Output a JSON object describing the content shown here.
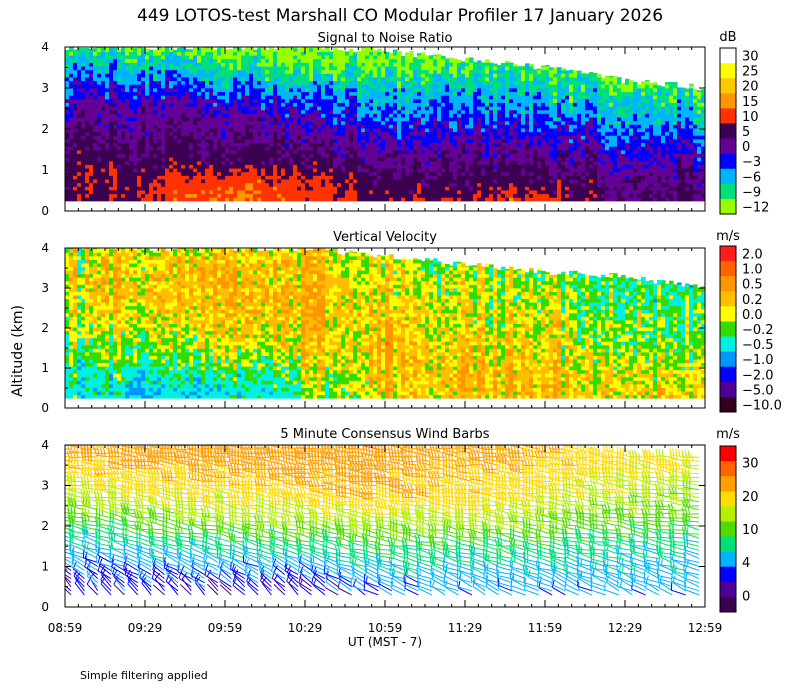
{
  "figure": {
    "title": "449 LOTOS-test Marshall CO Modular Profiler 17 January 2026",
    "ylabel": "Altitude (km)",
    "xlabel": "UT  (MST - 7)",
    "footnote": "Simple filtering applied",
    "time_labels": [
      "08:59",
      "09:29",
      "09:59",
      "10:29",
      "10:59",
      "11:29",
      "11:59",
      "12:29",
      "12:59"
    ]
  },
  "chart_data": [
    {
      "type": "heatmap",
      "title": "Signal to Noise Ratio",
      "xlabel": "UT  (MST - 7)",
      "ylabel": "Altitude (km)",
      "x_range": [
        "08:59",
        "12:59"
      ],
      "ylim": [
        0,
        4
      ],
      "y_ticks": [
        "0",
        "1",
        "2",
        "3",
        "4"
      ],
      "colorbar": {
        "unit": "dB",
        "labels": [
          "30",
          "25",
          "20",
          "15",
          "10",
          "5",
          "0",
          "−3",
          "−6",
          "−9",
          "−12"
        ],
        "colors": [
          "#ffffff",
          "#ffff00",
          "#ffc800",
          "#ff9600",
          "#ff3200",
          "#3c0050",
          "#640096",
          "#0000ff",
          "#00b4ff",
          "#00e07a",
          "#96ff00"
        ]
      },
      "profile_columns": [
        {
          "t": 0.0,
          "top_km": 4.0,
          "snr_db": [
            5,
            5,
            6,
            5,
            3,
            2,
            0,
            -2,
            -4,
            -7,
            -10
          ]
        },
        {
          "t": 0.12,
          "top_km": 4.0,
          "snr_db": [
            6,
            8,
            6,
            4,
            3,
            1,
            0,
            -2,
            -5,
            -8,
            -11
          ]
        },
        {
          "t": 0.25,
          "top_km": 4.0,
          "snr_db": [
            12,
            14,
            10,
            5,
            3,
            2,
            0,
            -3,
            -6,
            -9,
            -12
          ]
        },
        {
          "t": 0.37,
          "top_km": 4.0,
          "snr_db": [
            10,
            11,
            8,
            4,
            2,
            0,
            -2,
            -4,
            -8,
            -11,
            -12
          ]
        },
        {
          "t": 0.5,
          "top_km": 3.9,
          "snr_db": [
            6,
            5,
            3,
            1,
            -1,
            -3,
            -5,
            -7,
            -9,
            -11,
            -12
          ]
        },
        {
          "t": 0.62,
          "top_km": 3.7,
          "snr_db": [
            10,
            6,
            4,
            2,
            0,
            -2,
            -4,
            -6,
            -8,
            -10,
            -12
          ]
        },
        {
          "t": 0.75,
          "top_km": 3.5,
          "snr_db": [
            11,
            7,
            4,
            1,
            -1,
            -3,
            -5,
            -7,
            -9,
            -11,
            -12
          ]
        },
        {
          "t": 0.87,
          "top_km": 3.2,
          "snr_db": [
            4,
            3,
            2,
            0,
            -2,
            -4,
            -6,
            -8,
            -10,
            -11,
            -12
          ]
        },
        {
          "t": 1.0,
          "top_km": 3.0,
          "snr_db": [
            5,
            3,
            1,
            -1,
            -3,
            -5,
            -7,
            -9,
            -11,
            -12,
            -12
          ]
        }
      ]
    },
    {
      "type": "heatmap",
      "title": "Vertical Velocity",
      "xlabel": "UT  (MST - 7)",
      "ylabel": "Altitude (km)",
      "x_range": [
        "08:59",
        "12:59"
      ],
      "ylim": [
        0,
        4
      ],
      "y_ticks": [
        "0",
        "1",
        "2",
        "3",
        "4"
      ],
      "colorbar": {
        "unit": "m/s",
        "labels": [
          "2.0",
          "1.0",
          "0.5",
          "0.2",
          "0.0",
          "−0.2",
          "−0.5",
          "−1.0",
          "−2.0",
          "−5.0",
          "−10.0"
        ],
        "colors": [
          "#ff1e1e",
          "#ff6400",
          "#ff9600",
          "#ffbe00",
          "#ffff00",
          "#32dc00",
          "#00f0e0",
          "#0096ff",
          "#0000ff",
          "#500096",
          "#32001e"
        ]
      },
      "profile_columns": [
        {
          "t": 0.0,
          "top_km": 4.0,
          "w_ms": [
            -0.6,
            -0.5,
            -0.4,
            -0.3,
            -0.2,
            -0.1,
            0.0,
            0.0,
            0.1,
            0.0,
            -0.1
          ]
        },
        {
          "t": 0.12,
          "top_km": 4.0,
          "w_ms": [
            -0.8,
            -0.7,
            -0.5,
            -0.3,
            -0.1,
            0.0,
            0.1,
            0.2,
            0.1,
            0.1,
            0.0
          ]
        },
        {
          "t": 0.25,
          "top_km": 4.0,
          "w_ms": [
            -0.7,
            -0.6,
            -0.4,
            -0.2,
            0.0,
            0.1,
            0.2,
            0.2,
            0.3,
            0.2,
            0.1
          ]
        },
        {
          "t": 0.37,
          "top_km": 4.0,
          "w_ms": [
            -0.4,
            -0.3,
            -0.2,
            0.0,
            0.1,
            0.2,
            0.3,
            0.3,
            0.2,
            0.2,
            0.1
          ]
        },
        {
          "t": 0.5,
          "top_km": 3.8,
          "w_ms": [
            0.1,
            0.2,
            0.2,
            0.3,
            0.3,
            0.2,
            0.2,
            0.1,
            0.1,
            0.0,
            0.0
          ]
        },
        {
          "t": 0.62,
          "top_km": 3.6,
          "w_ms": [
            0.2,
            0.3,
            0.3,
            0.2,
            0.2,
            0.1,
            0.1,
            0.0,
            0.0,
            -0.1,
            -0.1
          ]
        },
        {
          "t": 0.75,
          "top_km": 3.4,
          "w_ms": [
            0.1,
            0.2,
            0.2,
            0.1,
            0.0,
            0.0,
            -0.1,
            -0.1,
            -0.2,
            -0.2,
            -0.3
          ]
        },
        {
          "t": 0.87,
          "top_km": 3.3,
          "w_ms": [
            0.0,
            0.1,
            0.0,
            -0.1,
            -0.2,
            -0.2,
            -0.3,
            -0.3,
            -0.4,
            -0.4,
            -0.5
          ]
        },
        {
          "t": 1.0,
          "top_km": 3.0,
          "w_ms": [
            0.2,
            0.1,
            0.0,
            -0.1,
            -0.2,
            -0.3,
            -0.3,
            -0.4,
            -0.5,
            -0.5,
            -0.6
          ]
        }
      ]
    },
    {
      "type": "scatter",
      "title": "5 Minute Consensus Wind Barbs",
      "xlabel": "UT  (MST - 7)",
      "ylabel": "Altitude (km)",
      "x_range": [
        "08:59",
        "12:59"
      ],
      "ylim": [
        0,
        4
      ],
      "y_ticks": [
        "0",
        "1",
        "2",
        "3",
        "4"
      ],
      "colorbar": {
        "unit": "m/s",
        "labels": [
          "30",
          "20",
          "10",
          "4",
          "0"
        ],
        "colors": [
          "#ff0000",
          "#ff6400",
          "#ffa000",
          "#ffdc00",
          "#b4f000",
          "#50dc00",
          "#00e07a",
          "#00b4ff",
          "#0000ff",
          "#500096",
          "#3c0050"
        ]
      },
      "wind_columns": [
        {
          "t": 0.0,
          "top_km": 4.3,
          "speed_ms": [
            2,
            3,
            4,
            6,
            8,
            11,
            14,
            16,
            18,
            20,
            21,
            22
          ],
          "direction_deg": [
            330,
            320,
            300,
            290,
            285,
            280,
            280,
            280,
            275,
            275,
            275,
            275
          ]
        },
        {
          "t": 0.12,
          "top_km": 4.3,
          "speed_ms": [
            3,
            4,
            5,
            7,
            9,
            12,
            15,
            17,
            19,
            21,
            22,
            23
          ],
          "direction_deg": [
            330,
            320,
            300,
            290,
            285,
            280,
            280,
            280,
            275,
            275,
            275,
            275
          ]
        },
        {
          "t": 0.25,
          "top_km": 4.3,
          "speed_ms": [
            2,
            3,
            5,
            7,
            10,
            13,
            16,
            18,
            20,
            22,
            23,
            24
          ],
          "direction_deg": [
            320,
            310,
            300,
            290,
            285,
            280,
            280,
            275,
            275,
            275,
            275,
            275
          ]
        },
        {
          "t": 0.37,
          "top_km": 4.3,
          "speed_ms": [
            2,
            3,
            5,
            8,
            11,
            14,
            17,
            19,
            21,
            22,
            23,
            24
          ],
          "direction_deg": [
            320,
            310,
            300,
            290,
            285,
            280,
            280,
            275,
            275,
            275,
            275,
            275
          ]
        },
        {
          "t": 0.5,
          "top_km": 4.3,
          "speed_ms": [
            4,
            5,
            7,
            9,
            12,
            15,
            18,
            20,
            21,
            22,
            23,
            24
          ],
          "direction_deg": [
            300,
            295,
            290,
            285,
            280,
            280,
            275,
            275,
            275,
            275,
            275,
            275
          ]
        },
        {
          "t": 0.62,
          "top_km": 4.1,
          "speed_ms": [
            5,
            6,
            7,
            9,
            12,
            15,
            18,
            19,
            20,
            21,
            22,
            22
          ],
          "direction_deg": [
            300,
            295,
            290,
            285,
            280,
            280,
            275,
            275,
            275,
            275,
            275,
            275
          ]
        },
        {
          "t": 0.75,
          "top_km": 4.0,
          "speed_ms": [
            5,
            6,
            7,
            9,
            11,
            14,
            16,
            18,
            19,
            20,
            21,
            21
          ],
          "direction_deg": [
            300,
            295,
            290,
            285,
            280,
            280,
            275,
            275,
            275,
            275,
            275,
            275
          ]
        },
        {
          "t": 0.87,
          "top_km": 3.8,
          "speed_ms": [
            5,
            6,
            7,
            8,
            10,
            12,
            14,
            16,
            17,
            18,
            19,
            19
          ],
          "direction_deg": [
            300,
            295,
            290,
            285,
            280,
            280,
            275,
            275,
            275,
            275,
            275,
            275
          ]
        },
        {
          "t": 1.0,
          "top_km": 3.7,
          "speed_ms": [
            5,
            6,
            7,
            8,
            9,
            11,
            13,
            15,
            16,
            17,
            18,
            18
          ],
          "direction_deg": [
            300,
            295,
            290,
            285,
            280,
            280,
            275,
            275,
            275,
            275,
            275,
            275
          ]
        }
      ]
    }
  ]
}
